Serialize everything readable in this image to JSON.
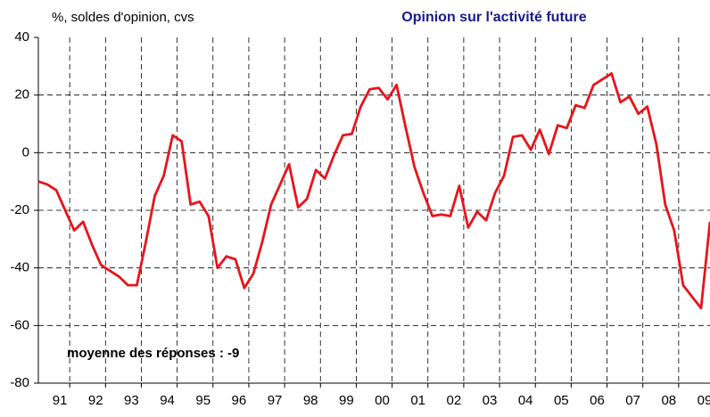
{
  "chart_data": {
    "type": "line",
    "title": "Opinion sur l'activité future",
    "ylabel": "%, soldes d'opinion, cvs",
    "annotation": "moyenne des réponses : -9",
    "categories": [
      null,
      null,
      "91",
      null,
      null,
      null,
      "92",
      null,
      null,
      null,
      "93",
      null,
      null,
      null,
      "94",
      null,
      null,
      null,
      "95",
      null,
      null,
      null,
      "96",
      null,
      null,
      null,
      "97",
      null,
      null,
      null,
      "98",
      null,
      null,
      null,
      "99",
      null,
      null,
      null,
      "00",
      null,
      null,
      null,
      "01",
      null,
      null,
      null,
      "02",
      null,
      null,
      null,
      "03",
      null,
      null,
      null,
      "04",
      null,
      null,
      null,
      "05",
      null,
      null,
      null,
      "06",
      null,
      null,
      null,
      "07",
      null,
      null,
      null,
      "08",
      null,
      null,
      null,
      "09",
      null
    ],
    "series": [
      {
        "color": "#e8141b",
        "values": [
          -10,
          -11,
          -13,
          -20,
          -27,
          -24,
          -32,
          -39,
          -41,
          -43,
          -46,
          -46,
          -31,
          -15,
          -8,
          6,
          4,
          -18,
          -17,
          -22,
          -40,
          -36,
          -37,
          -47,
          -42,
          -31,
          -18,
          -11,
          -4,
          -19,
          -16,
          -6,
          -9,
          -1,
          6,
          6.5,
          16,
          22,
          22.5,
          18.5,
          23.5,
          9,
          -5,
          -14,
          -22,
          -21.5,
          -22,
          -11.5,
          -26,
          -20.5,
          -23.5,
          -14,
          -8,
          5.5,
          6,
          1,
          8,
          -0.5,
          9.5,
          8.5,
          16.5,
          15.5,
          23.5,
          25.5,
          27.5,
          17.5,
          19.5,
          13.5,
          16,
          3,
          -18,
          -27,
          -46,
          -50,
          -54,
          -24
        ]
      }
    ],
    "ylim": [
      -80,
      40
    ],
    "yticks": [
      40,
      20,
      0,
      -20,
      -40,
      -60,
      -80
    ],
    "grid": true
  }
}
